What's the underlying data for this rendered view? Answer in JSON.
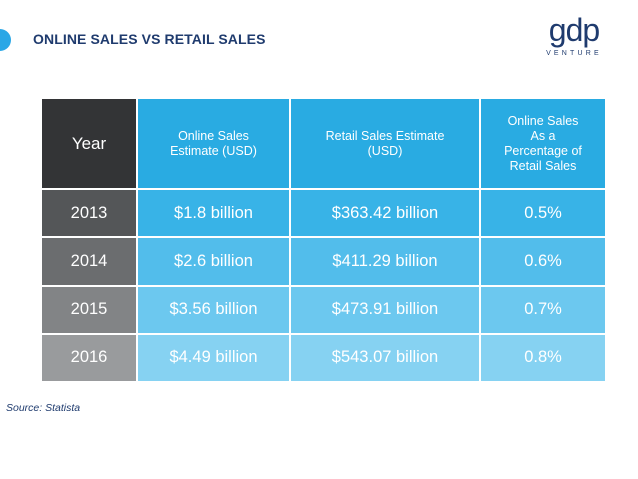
{
  "header": {
    "title": "ONLINE SALES VS RETAIL SALES",
    "logo_word": "gdp",
    "logo_sub": "VENTURE",
    "accent_color": "#2aa7e6",
    "title_color": "#1f3b6e"
  },
  "table": {
    "headers": {
      "year": "Year",
      "online": "Online Sales Estimate (USD)",
      "retail": "Retail Sales Estimate (USD)",
      "pct": "Online Sales As a Percentage of Retail Sales"
    },
    "rows": [
      {
        "year": "2013",
        "online": "$1.8 billion",
        "retail": "$363.42 billion",
        "pct": "0.5%"
      },
      {
        "year": "2014",
        "online": "$2.6 billion",
        "retail": "$411.29 billion",
        "pct": "0.6%"
      },
      {
        "year": "2015",
        "online": "$3.56 billion",
        "retail": "$473.91 billion",
        "pct": "0.7%"
      },
      {
        "year": "2016",
        "online": "$4.49 billion",
        "retail": "$543.07 billion",
        "pct": "0.8%"
      }
    ]
  },
  "footer": {
    "source": "Source: Statista"
  }
}
